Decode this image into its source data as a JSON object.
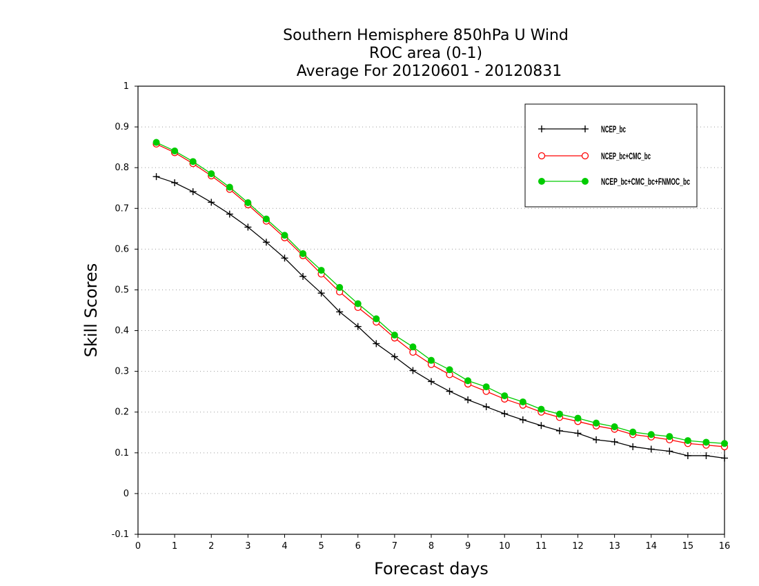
{
  "chart_data": {
    "type": "line",
    "title_lines": [
      "Southern Hemisphere 850hPa U Wind",
      "ROC area (0-1)",
      "Average For 20120601 - 20120831"
    ],
    "xlabel": "Forecast days",
    "ylabel": "Skill Scores",
    "xlim": [
      0,
      16
    ],
    "ylim": [
      -0.1,
      1
    ],
    "xticks": [
      0,
      1,
      2,
      3,
      4,
      5,
      6,
      7,
      8,
      9,
      10,
      11,
      12,
      13,
      14,
      15,
      16
    ],
    "xtick_labels": [
      "0",
      "1",
      "2",
      "3",
      "4",
      "5",
      "6",
      "7",
      "8",
      "9",
      "10",
      "11",
      "12",
      "13",
      "14",
      "15",
      "16"
    ],
    "yticks": [
      -0.1,
      0,
      0.1,
      0.2,
      0.3,
      0.4,
      0.5,
      0.6,
      0.7,
      0.8,
      0.9,
      1
    ],
    "ytick_labels": [
      "-0.1",
      "0",
      "0.1",
      "0.2",
      "0.3",
      "0.4",
      "0.5",
      "0.6",
      "0.7",
      "0.8",
      "0.9",
      "1"
    ],
    "grid": "dotted horizontal",
    "legend_position": "top-right",
    "x": [
      0.5,
      1,
      1.5,
      2,
      2.5,
      3,
      3.5,
      4,
      4.5,
      5,
      5.5,
      6,
      6.5,
      7,
      7.5,
      8,
      8.5,
      9,
      9.5,
      10,
      10.5,
      11,
      11.5,
      12,
      12.5,
      13,
      13.5,
      14,
      14.5,
      15,
      15.5,
      16
    ],
    "series": [
      {
        "name": "NCEP_bc",
        "color": "#000000",
        "marker": "plus",
        "values": [
          0.778,
          0.763,
          0.741,
          0.715,
          0.686,
          0.654,
          0.617,
          0.578,
          0.533,
          0.492,
          0.446,
          0.41,
          0.368,
          0.336,
          0.302,
          0.275,
          0.251,
          0.23,
          0.213,
          0.196,
          0.181,
          0.167,
          0.154,
          0.148,
          0.132,
          0.127,
          0.115,
          0.109,
          0.104,
          0.093,
          0.093,
          0.087
        ]
      },
      {
        "name": "NCEP_bc+CMC_bc",
        "color": "#ff0000",
        "marker": "circle-open",
        "values": [
          0.858,
          0.837,
          0.81,
          0.78,
          0.747,
          0.709,
          0.669,
          0.628,
          0.584,
          0.539,
          0.495,
          0.457,
          0.421,
          0.382,
          0.347,
          0.317,
          0.292,
          0.269,
          0.251,
          0.232,
          0.217,
          0.2,
          0.187,
          0.177,
          0.166,
          0.158,
          0.145,
          0.139,
          0.132,
          0.123,
          0.119,
          0.115
        ]
      },
      {
        "name": "NCEP_bc+CMC_bc+FNMOC_bc",
        "color": "#00cc00",
        "marker": "circle-filled",
        "values": [
          0.862,
          0.841,
          0.815,
          0.785,
          0.752,
          0.714,
          0.674,
          0.634,
          0.589,
          0.548,
          0.506,
          0.466,
          0.429,
          0.389,
          0.36,
          0.327,
          0.304,
          0.277,
          0.262,
          0.24,
          0.225,
          0.207,
          0.195,
          0.185,
          0.173,
          0.164,
          0.151,
          0.145,
          0.14,
          0.13,
          0.126,
          0.123
        ]
      }
    ]
  }
}
